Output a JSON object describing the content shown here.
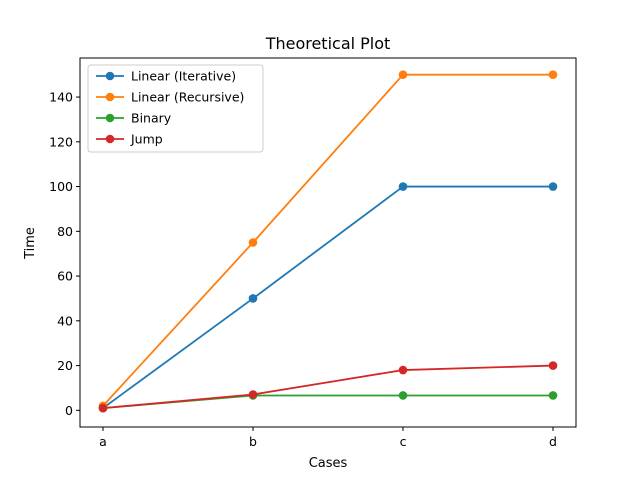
{
  "chart_data": {
    "type": "line",
    "title": "Theoretical Plot",
    "xlabel": "Cases",
    "ylabel": "Time",
    "categories": [
      "a",
      "b",
      "c",
      "d"
    ],
    "yticks": [
      0,
      20,
      40,
      60,
      80,
      100,
      120,
      140
    ],
    "ylim": [
      -7.45,
      157.45
    ],
    "grid": false,
    "legend_position": "upper-left",
    "series": [
      {
        "name": "Linear (Iterative)",
        "color": "#1f77b4",
        "values": [
          1,
          50,
          100,
          100
        ]
      },
      {
        "name": "Linear (Recursive)",
        "color": "#ff7f0e",
        "values": [
          2,
          75,
          150,
          150
        ]
      },
      {
        "name": "Binary",
        "color": "#2ca02c",
        "values": [
          1,
          6.64,
          6.64,
          6.64
        ]
      },
      {
        "name": "Jump",
        "color": "#d62728",
        "values": [
          1,
          7.07,
          18,
          20
        ]
      }
    ]
  }
}
